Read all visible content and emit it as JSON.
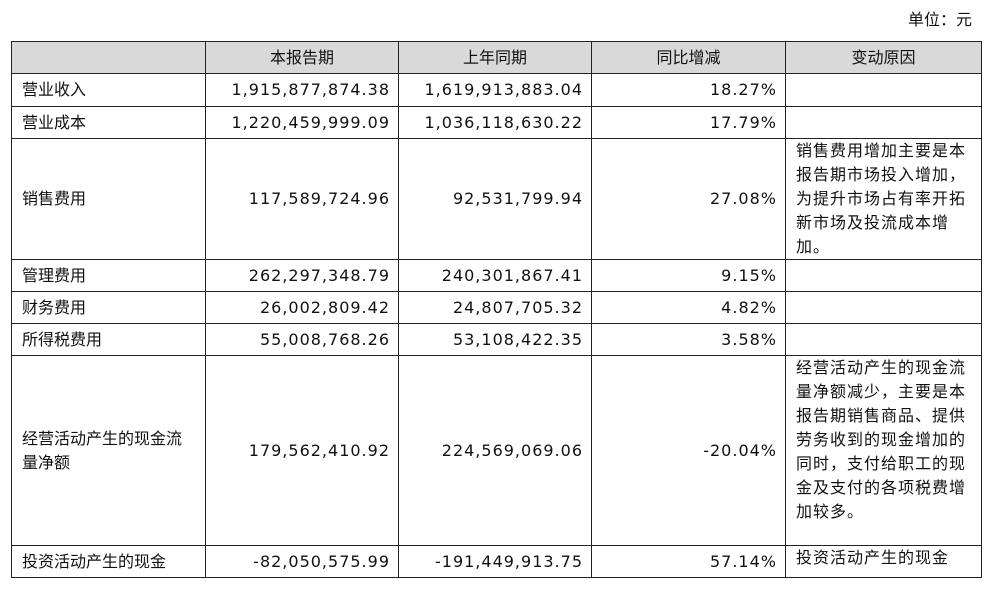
{
  "unit": "单位：元",
  "table": {
    "header": [
      "",
      "本报告期",
      "上年同期",
      "同比增减",
      "变动原因"
    ],
    "rows": [
      [
        "营业收入",
        "1,915,877,874.38",
        "1,619,913,883.04",
        "18.27%"
      ],
      [
        "营业成本",
        "1,220,459,999.09",
        "1,036,118,630.22",
        "17.79%"
      ],
      [
        "销售费用",
        "117,589,724.96",
        "92,531,799.94",
        "27.08%",
        "销售费用增加主要是本报告期市场投入增加，为提升市场占有率开拓新市场及投流成本增加。"
      ],
      [
        "管理费用",
        "262,297,348.79",
        "240,301,867.41",
        "9.15%"
      ],
      [
        "财务费用",
        "26,002,809.42",
        "24,807,705.32",
        "4.82%"
      ],
      [
        "所得税费用",
        "55,008,768.26",
        "53,108,422.35",
        "3.58%"
      ],
      [
        "经营活动产生的现金流量净额",
        "179,562,410.92",
        "224,569,069.06",
        "-20.04%",
        "经营活动产生的现金流量净额减少，主要是本报告期销售商品、提供劳务收到的现金增加的同时，支付给职工的现金及支付的各项税费增加较多。"
      ],
      [
        "投资活动产生的现金",
        "-82,050,575.99",
        "-191,449,913.75",
        "57.14%",
        "投资活动产生的现金"
      ]
    ]
  }
}
